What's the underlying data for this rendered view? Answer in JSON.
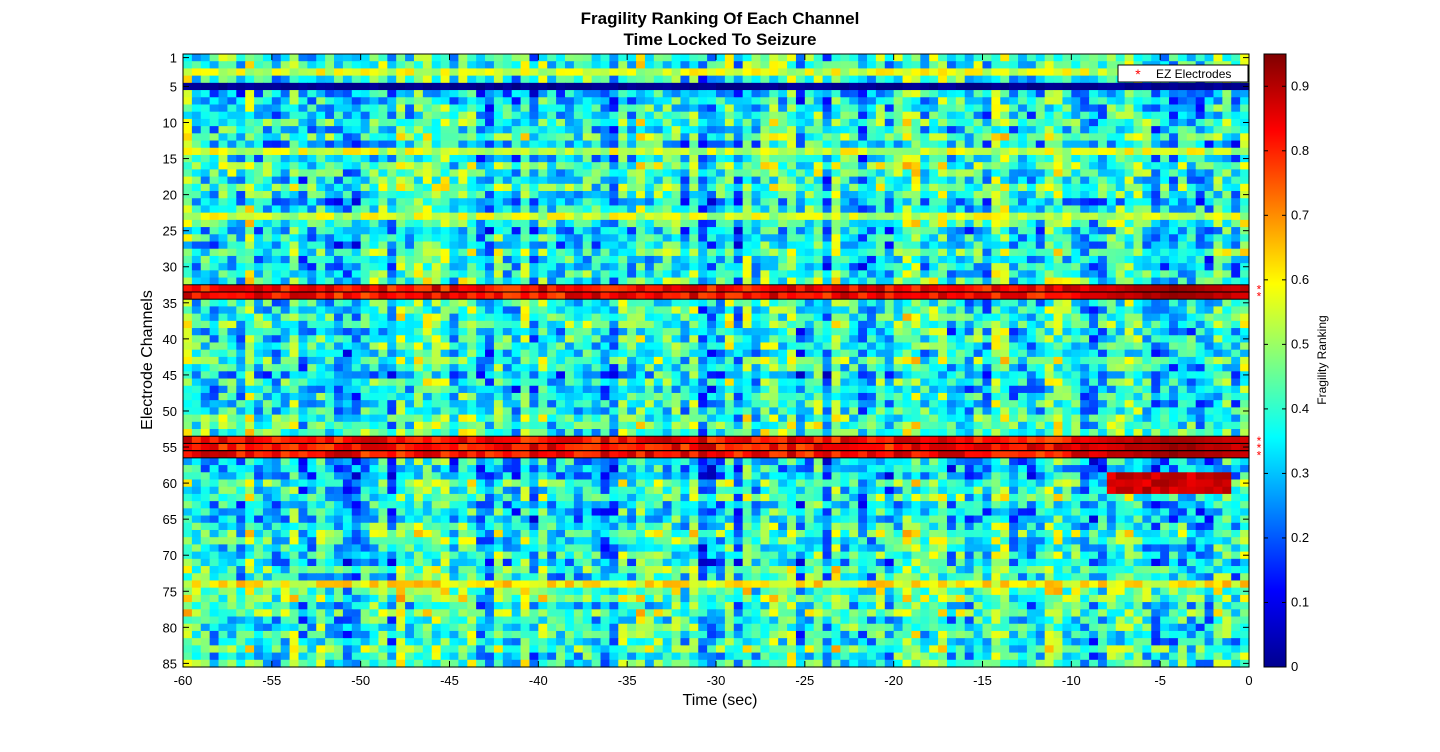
{
  "chart_data": {
    "type": "heatmap",
    "title": [
      "Fragility Ranking Of Each Channel",
      "Time Locked To Seizure"
    ],
    "xlabel": "Time (sec)",
    "ylabel": "Electrode Channels",
    "xlim": [
      -60,
      0
    ],
    "x_ticks": [
      -60,
      -55,
      -50,
      -45,
      -40,
      -35,
      -30,
      -25,
      -20,
      -15,
      -10,
      -5,
      0
    ],
    "ylim": [
      1,
      85
    ],
    "y_ticks": [
      1,
      5,
      10,
      15,
      20,
      25,
      30,
      35,
      40,
      45,
      50,
      55,
      60,
      65,
      70,
      75,
      80,
      85
    ],
    "y_direction": "reversed",
    "colormap": "jet",
    "colorbar": {
      "label": "Fragility Ranking",
      "range": [
        0,
        0.95
      ],
      "ticks": [
        0,
        0.1,
        0.2,
        0.3,
        0.4,
        0.5,
        0.6,
        0.7,
        0.8,
        0.9
      ]
    },
    "grid": false,
    "legend": {
      "position": "top-right",
      "entries": [
        {
          "name": "EZ Electrodes",
          "marker": "*",
          "color": "#ff0000"
        }
      ]
    },
    "ez_electrodes": [
      33,
      34,
      54,
      55,
      56
    ],
    "n_channels": 85,
    "n_time_bins": 120,
    "time_bin_sec": 0.5,
    "value_pattern": {
      "background_range": [
        0.1,
        0.6
      ],
      "channel_5_value": 0.0,
      "ez_channel_values": [
        0.75,
        0.9
      ],
      "ez_onset_peak_time": -4,
      "ez_onset_peak_value": 0.93,
      "channel_59_61_onset_window": [
        -8,
        -1
      ],
      "channel_59_61_onset_value": 0.88,
      "bright_rows": [
        3,
        14,
        23,
        74
      ],
      "bright_row_value": 0.55
    }
  }
}
